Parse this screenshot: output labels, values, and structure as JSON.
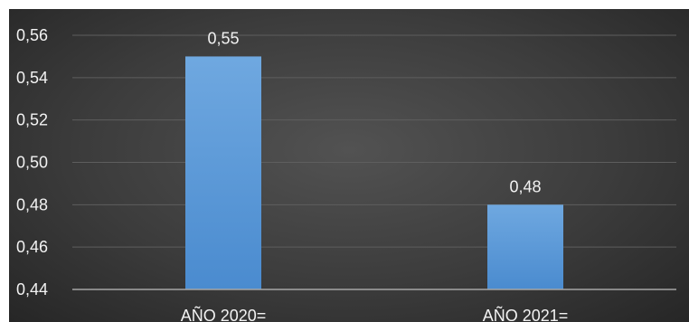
{
  "chart_data": {
    "type": "bar",
    "categories": [
      "AÑO 2020=",
      "AÑO 2021="
    ],
    "values": [
      0.55,
      0.48
    ],
    "data_labels": [
      "0,55",
      "0,48"
    ],
    "ylim": [
      0.44,
      0.56
    ],
    "yticks": [
      0.44,
      0.46,
      0.48,
      0.5,
      0.52,
      0.54,
      0.56
    ],
    "ytick_labels": [
      "0,44",
      "0,46",
      "0,48",
      "0,50",
      "0,52",
      "0,54",
      "0,56"
    ],
    "grid": true,
    "legend": "none",
    "colors": {
      "bar": "#5b9bd5",
      "background": "#404040",
      "text": "#f2f2f2"
    }
  }
}
